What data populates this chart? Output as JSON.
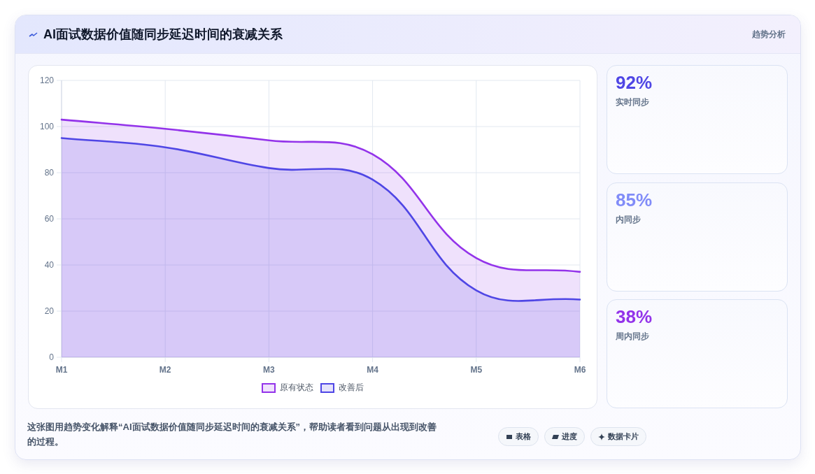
{
  "chart_data": [
    {
      "type": "area",
      "title": "AI面试数据价值随同步延迟时间的衰减关系",
      "categories": [
        "M1",
        "M2",
        "M3",
        "M4",
        "M5",
        "M6"
      ],
      "series": [
        {
          "name": "原有状态",
          "color": "#9333ea",
          "values": [
            103,
            99,
            94,
            88,
            43,
            37
          ]
        },
        {
          "name": "改善后",
          "color": "#4f46e5",
          "values": [
            95,
            91,
            82,
            77,
            29,
            25
          ]
        }
      ],
      "ylim": [
        0,
        120
      ],
      "yticks": [
        0,
        20,
        40,
        60,
        80,
        100,
        120
      ],
      "grid": true,
      "legend": "bottom",
      "annotations": [
        "趋势分析",
        "这张图用趋势变化解释“AI面试数据价值随同步延迟时间的衰减关系”，帮助读者看到问题从出现到改善的过程。",
        "表格",
        "进度",
        "数据卡片"
      ]
    },
    {
      "type": "other",
      "annotations": [
        "92%",
        "实时同步",
        "85%",
        "内同步",
        "38%",
        "周内同步"
      ]
    }
  ]
}
